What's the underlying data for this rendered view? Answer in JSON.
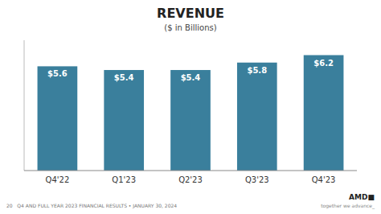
{
  "chart_data": {
    "type": "bar",
    "title": "REVENUE",
    "subtitle": "($ in Billions)",
    "categories": [
      "Q4'22",
      "Q1'23",
      "Q2'23",
      "Q3'23",
      "Q4'23"
    ],
    "values": [
      5.6,
      5.4,
      5.4,
      5.8,
      6.2
    ],
    "value_labels": [
      "$5.6",
      "$5.4",
      "$5.4",
      "$5.8",
      "$6.2"
    ],
    "data_labels": true,
    "color": "#3a7f9c",
    "ylim": [
      0,
      7.0
    ],
    "tick_labels": "x",
    "annotations": [
      "20   Q4 AND FULL YEAR 2023 FINANCIAL RESULTS • JANUARY 30, 2024",
      "AMD■",
      "together we advance_"
    ]
  }
}
